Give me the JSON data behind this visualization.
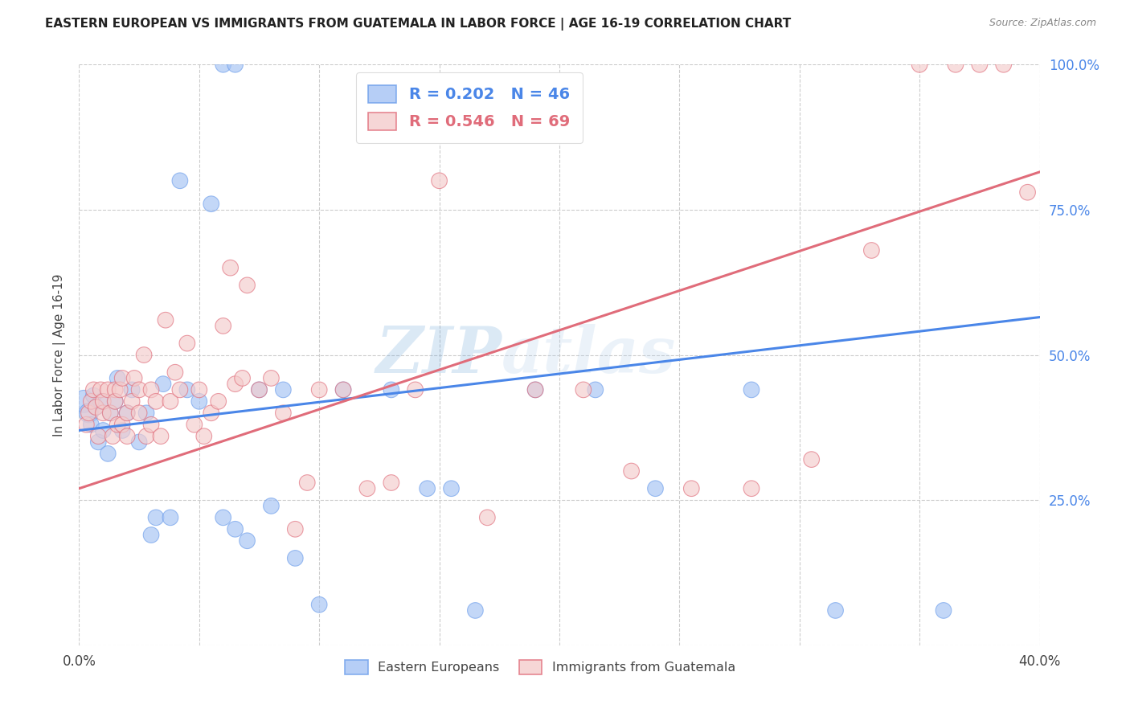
{
  "title": "EASTERN EUROPEAN VS IMMIGRANTS FROM GUATEMALA IN LABOR FORCE | AGE 16-19 CORRELATION CHART",
  "source": "Source: ZipAtlas.com",
  "ylabel": "In Labor Force | Age 16-19",
  "watermark_part1": "ZIP",
  "watermark_part2": "atlas",
  "x_min": 0.0,
  "x_max": 0.4,
  "y_min": 0.0,
  "y_max": 1.0,
  "x_ticks": [
    0.0,
    0.05,
    0.1,
    0.15,
    0.2,
    0.25,
    0.3,
    0.35,
    0.4
  ],
  "x_tick_labels": [
    "0.0%",
    "",
    "",
    "",
    "",
    "",
    "",
    "",
    "40.0%"
  ],
  "y_ticks": [
    0.0,
    0.25,
    0.5,
    0.75,
    1.0
  ],
  "y_tick_labels": [
    "",
    "25.0%",
    "50.0%",
    "75.0%",
    "100.0%"
  ],
  "legend_blue_r": "R = 0.202",
  "legend_blue_n": "N = 46",
  "legend_pink_r": "R = 0.546",
  "legend_pink_n": "N = 69",
  "legend_label_blue": "Eastern Europeans",
  "legend_label_pink": "Immigrants from Guatemala",
  "blue_fill": "#a4c2f4",
  "pink_fill": "#f4cccc",
  "blue_edge": "#6d9eeb",
  "pink_edge": "#e06c7a",
  "line_blue": "#4a86e8",
  "line_pink": "#e06c7a",
  "blue_line_x0": 0.0,
  "blue_line_x1": 0.4,
  "blue_line_y0": 0.37,
  "blue_line_y1": 0.565,
  "pink_line_x0": 0.0,
  "pink_line_x1": 0.4,
  "pink_line_y0": 0.27,
  "pink_line_y1": 0.815,
  "blue_x": [
    0.002,
    0.004,
    0.005,
    0.006,
    0.007,
    0.008,
    0.009,
    0.01,
    0.012,
    0.013,
    0.015,
    0.016,
    0.018,
    0.02,
    0.022,
    0.025,
    0.028,
    0.03,
    0.032,
    0.035,
    0.038,
    0.042,
    0.045,
    0.05,
    0.055,
    0.06,
    0.065,
    0.075,
    0.085,
    0.09,
    0.1,
    0.11,
    0.13,
    0.145,
    0.155,
    0.165,
    0.19,
    0.215,
    0.24,
    0.28,
    0.315,
    0.36,
    0.06,
    0.065,
    0.07,
    0.08
  ],
  "blue_y": [
    0.42,
    0.4,
    0.38,
    0.43,
    0.41,
    0.35,
    0.42,
    0.37,
    0.33,
    0.4,
    0.42,
    0.46,
    0.37,
    0.4,
    0.44,
    0.35,
    0.4,
    0.19,
    0.22,
    0.45,
    0.22,
    0.8,
    0.44,
    0.42,
    0.76,
    1.0,
    1.0,
    0.44,
    0.44,
    0.15,
    0.07,
    0.44,
    0.44,
    0.27,
    0.27,
    0.06,
    0.44,
    0.44,
    0.27,
    0.44,
    0.06,
    0.06,
    0.22,
    0.2,
    0.18,
    0.24
  ],
  "blue_size": [
    400,
    300,
    200,
    200,
    200,
    200,
    200,
    200,
    200,
    200,
    200,
    200,
    200,
    200,
    200,
    200,
    200,
    200,
    200,
    200,
    200,
    200,
    200,
    200,
    200,
    200,
    200,
    200,
    200,
    200,
    200,
    200,
    200,
    200,
    200,
    200,
    200,
    200,
    200,
    200,
    200,
    200,
    200,
    200,
    200,
    200
  ],
  "pink_x": [
    0.003,
    0.004,
    0.005,
    0.006,
    0.007,
    0.008,
    0.009,
    0.01,
    0.01,
    0.012,
    0.013,
    0.014,
    0.015,
    0.015,
    0.016,
    0.017,
    0.018,
    0.018,
    0.02,
    0.02,
    0.022,
    0.023,
    0.025,
    0.025,
    0.027,
    0.028,
    0.03,
    0.03,
    0.032,
    0.034,
    0.036,
    0.038,
    0.04,
    0.042,
    0.045,
    0.048,
    0.05,
    0.052,
    0.055,
    0.058,
    0.06,
    0.063,
    0.065,
    0.068,
    0.07,
    0.075,
    0.08,
    0.085,
    0.09,
    0.095,
    0.1,
    0.11,
    0.12,
    0.13,
    0.14,
    0.15,
    0.17,
    0.19,
    0.21,
    0.23,
    0.255,
    0.28,
    0.305,
    0.33,
    0.35,
    0.365,
    0.375,
    0.385,
    0.395
  ],
  "pink_y": [
    0.38,
    0.4,
    0.42,
    0.44,
    0.41,
    0.36,
    0.44,
    0.4,
    0.42,
    0.44,
    0.4,
    0.36,
    0.44,
    0.42,
    0.38,
    0.44,
    0.38,
    0.46,
    0.4,
    0.36,
    0.42,
    0.46,
    0.4,
    0.44,
    0.5,
    0.36,
    0.38,
    0.44,
    0.42,
    0.36,
    0.56,
    0.42,
    0.47,
    0.44,
    0.52,
    0.38,
    0.44,
    0.36,
    0.4,
    0.42,
    0.55,
    0.65,
    0.45,
    0.46,
    0.62,
    0.44,
    0.46,
    0.4,
    0.2,
    0.28,
    0.44,
    0.44,
    0.27,
    0.28,
    0.44,
    0.8,
    0.22,
    0.44,
    0.44,
    0.3,
    0.27,
    0.27,
    0.32,
    0.68,
    1.0,
    1.0,
    1.0,
    1.0,
    0.78
  ],
  "pink_size": [
    200,
    200,
    200,
    200,
    200,
    200,
    200,
    200,
    200,
    200,
    200,
    200,
    200,
    200,
    200,
    200,
    200,
    200,
    200,
    200,
    200,
    200,
    200,
    200,
    200,
    200,
    200,
    200,
    200,
    200,
    200,
    200,
    200,
    200,
    200,
    200,
    200,
    200,
    200,
    200,
    200,
    200,
    200,
    200,
    200,
    200,
    200,
    200,
    200,
    200,
    200,
    200,
    200,
    200,
    200,
    200,
    200,
    200,
    200,
    200,
    200,
    200,
    200,
    200,
    200,
    200,
    200,
    200,
    200
  ]
}
